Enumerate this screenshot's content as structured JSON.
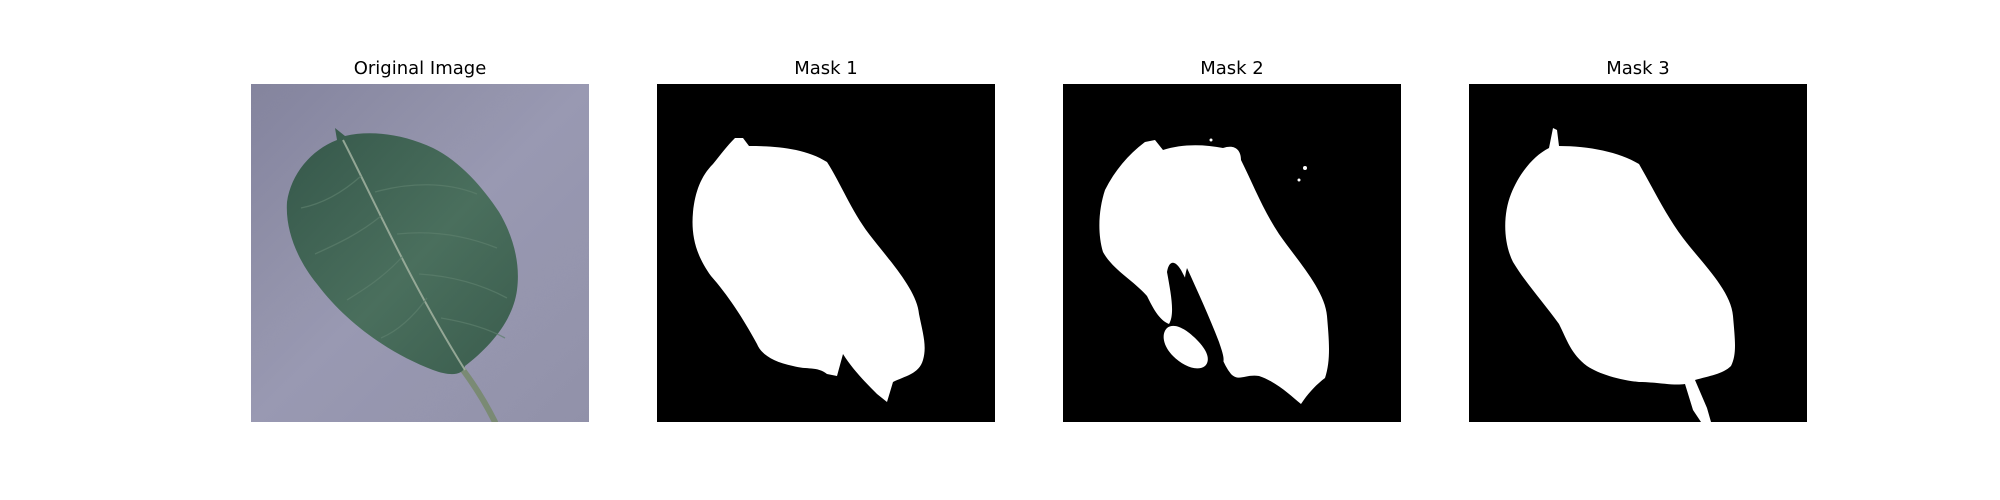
{
  "panels": [
    {
      "title": "Original Image"
    },
    {
      "title": "Mask 1"
    },
    {
      "title": "Mask 2"
    },
    {
      "title": "Mask 3"
    }
  ],
  "colors": {
    "background_surface": "#8e8ea6",
    "leaf": "#3f6350",
    "mask_background": "#000000",
    "mask_foreground": "#ffffff"
  }
}
